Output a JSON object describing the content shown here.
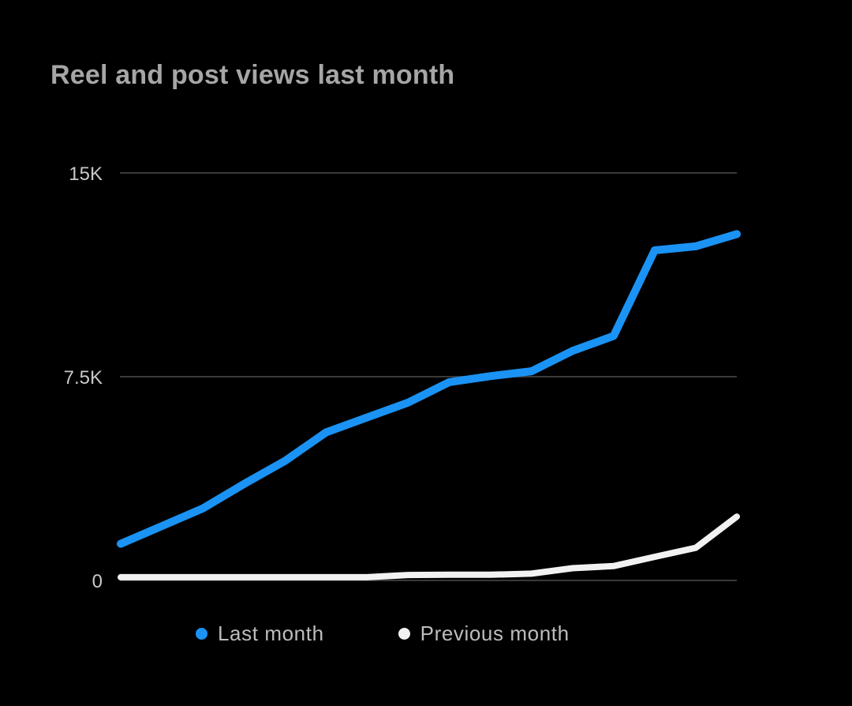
{
  "chart_data": {
    "type": "line",
    "title": "Reel and post views last month",
    "xlabel": "",
    "ylabel": "",
    "ylim": [
      0,
      15000
    ],
    "y_ticks": [
      {
        "value": 0,
        "label": "0"
      },
      {
        "value": 7500,
        "label": "7.5K"
      },
      {
        "value": 15000,
        "label": "15K"
      }
    ],
    "grid": "horizontal",
    "legend_position": "bottom",
    "x": [
      1,
      2,
      3,
      4,
      5,
      6,
      7,
      8,
      9,
      10,
      11,
      12,
      13,
      14,
      15,
      16
    ],
    "series": [
      {
        "name": "Last month",
        "color": "#1a93f5",
        "values": [
          1350,
          2000,
          2650,
          3550,
          4400,
          5450,
          6000,
          6550,
          7300,
          7520,
          7700,
          8450,
          9000,
          12150,
          12300,
          12750
        ]
      },
      {
        "name": "Previous month",
        "color": "#f2f2f2",
        "values": [
          120,
          120,
          120,
          120,
          120,
          120,
          120,
          200,
          210,
          210,
          250,
          450,
          530,
          870,
          1200,
          2350
        ]
      }
    ]
  }
}
